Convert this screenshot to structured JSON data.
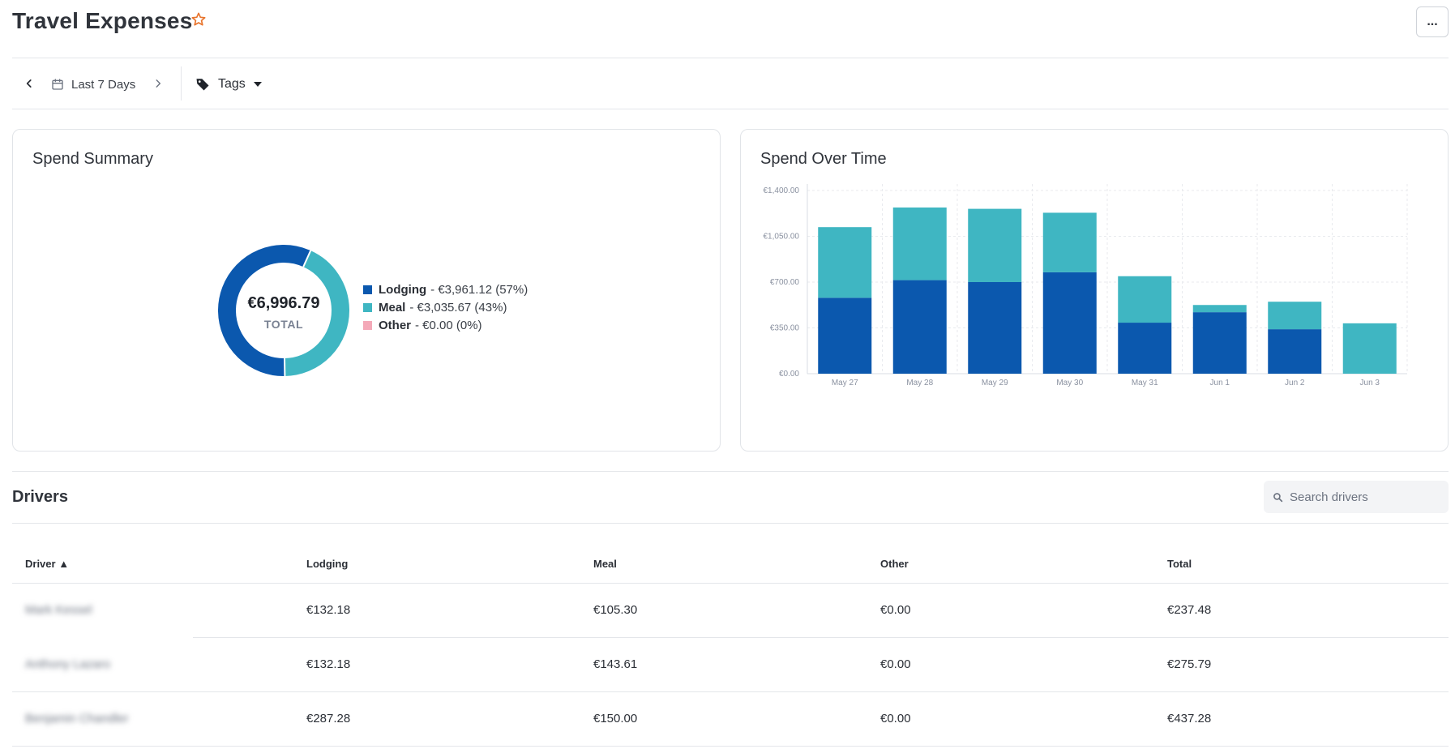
{
  "header": {
    "title": "Travel Expenses",
    "more_label": "..."
  },
  "toolbar": {
    "date_range": "Last 7 Days",
    "tags_label": "Tags"
  },
  "summary": {
    "title": "Spend Summary",
    "total": "€6,996.79",
    "total_caption": "TOTAL",
    "legend": [
      {
        "name": "Lodging",
        "detail": "- €3,961.12 (57%)",
        "color": "#0b58ae",
        "fraction": 0.57
      },
      {
        "name": "Meal",
        "detail": "- €3,035.67 (43%)",
        "color": "#3fb6c2",
        "fraction": 0.43
      },
      {
        "name": "Other",
        "detail": "- €0.00 (0%)",
        "color": "#f4a9b8",
        "fraction": 0.0
      }
    ]
  },
  "chart_data": {
    "type": "bar",
    "title": "Spend Over Time",
    "categories": [
      "May 27",
      "May 28",
      "May 29",
      "May 30",
      "May 31",
      "Jun 1",
      "Jun 2",
      "Jun 3"
    ],
    "series": [
      {
        "name": "Lodging",
        "color": "#0b58ae",
        "values": [
          580,
          715,
          700,
          775,
          390,
          470,
          340,
          0
        ]
      },
      {
        "name": "Meal",
        "color": "#3fb6c2",
        "values": [
          540,
          555,
          560,
          455,
          355,
          55,
          210,
          385
        ]
      }
    ],
    "yticks": [
      "€0.00",
      "€350.00",
      "€700.00",
      "€1,050.00",
      "€1,400.00"
    ],
    "ylim": [
      0,
      1400
    ],
    "stacked": true,
    "grid": true
  },
  "drivers": {
    "title": "Drivers",
    "search_placeholder": "Search drivers",
    "columns": [
      "Driver ▲",
      "Lodging",
      "Meal",
      "Other",
      "Total"
    ],
    "rows": [
      {
        "driver": "Mark Kessel",
        "lodging": "€132.18",
        "meal": "€105.30",
        "other": "€0.00",
        "total": "€237.48"
      },
      {
        "driver": "Anthony Lazaro",
        "lodging": "€132.18",
        "meal": "€143.61",
        "other": "€0.00",
        "total": "€275.79"
      },
      {
        "driver": "Benjamin Chandler",
        "lodging": "€287.28",
        "meal": "€150.00",
        "other": "€0.00",
        "total": "€437.28"
      }
    ]
  },
  "icons": {
    "star": "star-outline-icon",
    "calendar": "calendar-icon",
    "tag": "tag-icon",
    "search": "search-icon"
  }
}
